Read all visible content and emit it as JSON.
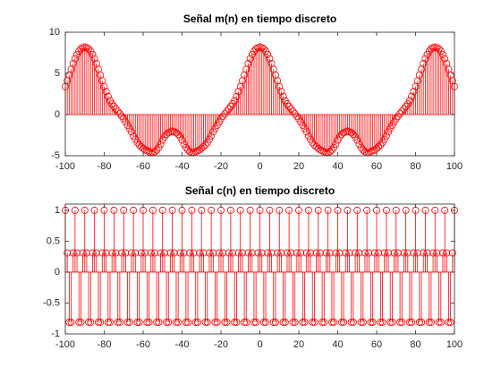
{
  "chart_data": [
    {
      "type": "stem",
      "title": "Señal m(n) en tiempo discreto",
      "color": "#ff0000",
      "x": [
        -100,
        -99,
        -98,
        -97,
        -96,
        -95,
        -94,
        -93,
        -92,
        -91,
        -90,
        -89,
        -88,
        -87,
        -86,
        -85,
        -84,
        -83,
        -82,
        -81,
        -80,
        -79,
        -78,
        -77,
        -76,
        -75,
        -74,
        -73,
        -72,
        -71,
        -70,
        -69,
        -68,
        -67,
        -66,
        -65,
        -64,
        -63,
        -62,
        -61,
        -60,
        -59,
        -58,
        -57,
        -56,
        -55,
        -54,
        -53,
        -52,
        -51,
        -50,
        -49,
        -48,
        -47,
        -46,
        -45,
        -44,
        -43,
        -42,
        -41,
        -40,
        -39,
        -38,
        -37,
        -36,
        -35,
        -34,
        -33,
        -32,
        -31,
        -30,
        -29,
        -28,
        -27,
        -26,
        -25,
        -24,
        -23,
        -22,
        -21,
        -20,
        -19,
        -18,
        -17,
        -16,
        -15,
        -14,
        -13,
        -12,
        -11,
        -10,
        -9,
        -8,
        -7,
        -6,
        -5,
        -4,
        -3,
        -2,
        -1,
        0,
        1,
        2,
        3,
        4,
        5,
        6,
        7,
        8,
        9,
        10,
        11,
        12,
        13,
        14,
        15,
        16,
        17,
        18,
        19,
        20,
        21,
        22,
        23,
        24,
        25,
        26,
        27,
        28,
        29,
        30,
        31,
        32,
        33,
        34,
        35,
        36,
        37,
        38,
        39,
        40,
        41,
        42,
        43,
        44,
        45,
        46,
        47,
        48,
        49,
        50,
        51,
        52,
        53,
        54,
        55,
        56,
        57,
        58,
        59,
        60,
        61,
        62,
        63,
        64,
        65,
        66,
        67,
        68,
        69,
        70,
        71,
        72,
        73,
        74,
        75,
        76,
        77,
        78,
        79,
        80,
        81,
        82,
        83,
        84,
        85,
        86,
        87,
        88,
        89,
        90,
        91,
        92,
        93,
        94,
        95,
        96,
        97,
        98,
        99,
        100
      ],
      "values": [
        3.4,
        4.1,
        4.8,
        5.5,
        6.2,
        6.8,
        7.3,
        7.7,
        8,
        8.1,
        8.2,
        8.1,
        8,
        7.7,
        7.3,
        6.8,
        6.2,
        5.5,
        4.8,
        4.1,
        3.4,
        2.8,
        2.2,
        1.7,
        1.3,
        1,
        0.7,
        0.4,
        0.1,
        -0.2,
        -0.5,
        -0.9,
        -1.3,
        -1.7,
        -2.1,
        -2.6,
        -3,
        -3.4,
        -3.7,
        -3.9,
        -4.1,
        -4.3,
        -4.4,
        -4.5,
        -4.6,
        -4.6,
        -4.5,
        -4.3,
        -4,
        -3.6,
        -3.1,
        -2.7,
        -2.4,
        -2.2,
        -2.1,
        -2,
        -2.1,
        -2.2,
        -2.4,
        -2.7,
        -3.1,
        -3.6,
        -4,
        -4.3,
        -4.5,
        -4.6,
        -4.6,
        -4.5,
        -4.4,
        -4.3,
        -4.1,
        -3.9,
        -3.7,
        -3.4,
        -3,
        -2.6,
        -2.1,
        -1.7,
        -1.3,
        -0.9,
        -0.5,
        -0.2,
        0.1,
        0.4,
        0.7,
        1,
        1.3,
        1.7,
        2.2,
        2.8,
        3.4,
        4.1,
        4.8,
        5.5,
        6.2,
        6.8,
        7.3,
        7.7,
        8,
        8.1,
        8.2,
        8.1,
        8,
        7.7,
        7.3,
        6.8,
        6.2,
        5.5,
        4.8,
        4.1,
        3.4,
        2.8,
        2.2,
        1.7,
        1.3,
        1,
        0.7,
        0.4,
        0.1,
        -0.2,
        -0.5,
        -0.9,
        -1.3,
        -1.7,
        -2.1,
        -2.6,
        -3,
        -3.4,
        -3.7,
        -3.9,
        -4.1,
        -4.3,
        -4.4,
        -4.5,
        -4.6,
        -4.6,
        -4.5,
        -4.3,
        -4,
        -3.6,
        -3.1,
        -2.7,
        -2.4,
        -2.2,
        -2.1,
        -2,
        -2.1,
        -2.2,
        -2.4,
        -2.7,
        -3.1,
        -3.6,
        -4,
        -4.3,
        -4.5,
        -4.6,
        -4.6,
        -4.5,
        -4.4,
        -4.3,
        -4.1,
        -3.9,
        -3.7,
        -3.4,
        -3,
        -2.6,
        -2.1,
        -1.7,
        -1.3,
        -0.9,
        -0.5,
        -0.2,
        0.1,
        0.4,
        0.7,
        1,
        1.3,
        1.7,
        2.2,
        2.8,
        3.4,
        4.1,
        4.8,
        5.5,
        6.2,
        6.8,
        7.3,
        7.7,
        8,
        8.1,
        8.2,
        8.1,
        8,
        7.7,
        7.3,
        6.8,
        6.2,
        5.5,
        4.8,
        4.1,
        3.4
      ],
      "xlim": [
        -100,
        100
      ],
      "xticks": [
        -100,
        -80,
        -60,
        -40,
        -20,
        0,
        20,
        40,
        60,
        80,
        100
      ],
      "ylim": [
        -5,
        10
      ],
      "yticks": [
        -5,
        0,
        5,
        10
      ]
    },
    {
      "type": "stem",
      "title": "Señal c(n) en tiempo discreto",
      "color": "#ff0000",
      "x": [
        -100,
        -99,
        -98,
        -97,
        -96,
        -95,
        -94,
        -93,
        -92,
        -91,
        -90,
        -89,
        -88,
        -87,
        -86,
        -85,
        -84,
        -83,
        -82,
        -81,
        -80,
        -79,
        -78,
        -77,
        -76,
        -75,
        -74,
        -73,
        -72,
        -71,
        -70,
        -69,
        -68,
        -67,
        -66,
        -65,
        -64,
        -63,
        -62,
        -61,
        -60,
        -59,
        -58,
        -57,
        -56,
        -55,
        -54,
        -53,
        -52,
        -51,
        -50,
        -49,
        -48,
        -47,
        -46,
        -45,
        -44,
        -43,
        -42,
        -41,
        -40,
        -39,
        -38,
        -37,
        -36,
        -35,
        -34,
        -33,
        -32,
        -31,
        -30,
        -29,
        -28,
        -27,
        -26,
        -25,
        -24,
        -23,
        -22,
        -21,
        -20,
        -19,
        -18,
        -17,
        -16,
        -15,
        -14,
        -13,
        -12,
        -11,
        -10,
        -9,
        -8,
        -7,
        -6,
        -5,
        -4,
        -3,
        -2,
        -1,
        0,
        1,
        2,
        3,
        4,
        5,
        6,
        7,
        8,
        9,
        10,
        11,
        12,
        13,
        14,
        15,
        16,
        17,
        18,
        19,
        20,
        21,
        22,
        23,
        24,
        25,
        26,
        27,
        28,
        29,
        30,
        31,
        32,
        33,
        34,
        35,
        36,
        37,
        38,
        39,
        40,
        41,
        42,
        43,
        44,
        45,
        46,
        47,
        48,
        49,
        50,
        51,
        52,
        53,
        54,
        55,
        56,
        57,
        58,
        59,
        60,
        61,
        62,
        63,
        64,
        65,
        66,
        67,
        68,
        69,
        70,
        71,
        72,
        73,
        74,
        75,
        76,
        77,
        78,
        79,
        80,
        81,
        82,
        83,
        84,
        85,
        86,
        87,
        88,
        89,
        90,
        91,
        92,
        93,
        94,
        95,
        96,
        97,
        98,
        99,
        100
      ],
      "values": [
        1,
        0.31,
        -0.81,
        -0.81,
        0.31,
        1,
        0.31,
        -0.81,
        -0.81,
        0.31,
        1,
        0.31,
        -0.81,
        -0.81,
        0.31,
        1,
        0.31,
        -0.81,
        -0.81,
        0.31,
        1,
        0.31,
        -0.81,
        -0.81,
        0.31,
        1,
        0.31,
        -0.81,
        -0.81,
        0.31,
        1,
        0.31,
        -0.81,
        -0.81,
        0.31,
        1,
        0.31,
        -0.81,
        -0.81,
        0.31,
        1,
        0.31,
        -0.81,
        -0.81,
        0.31,
        1,
        0.31,
        -0.81,
        -0.81,
        0.31,
        1,
        0.31,
        -0.81,
        -0.81,
        0.31,
        1,
        0.31,
        -0.81,
        -0.81,
        0.31,
        1,
        0.31,
        -0.81,
        -0.81,
        0.31,
        1,
        0.31,
        -0.81,
        -0.81,
        0.31,
        1,
        0.31,
        -0.81,
        -0.81,
        0.31,
        1,
        0.31,
        -0.81,
        -0.81,
        0.31,
        1,
        0.31,
        -0.81,
        -0.81,
        0.31,
        1,
        0.31,
        -0.81,
        -0.81,
        0.31,
        1,
        0.31,
        -0.81,
        -0.81,
        0.31,
        1,
        0.31,
        -0.81,
        -0.81,
        0.31,
        1,
        0.31,
        -0.81,
        -0.81,
        0.31,
        1,
        0.31,
        -0.81,
        -0.81,
        0.31,
        1,
        0.31,
        -0.81,
        -0.81,
        0.31,
        1,
        0.31,
        -0.81,
        -0.81,
        0.31,
        1,
        0.31,
        -0.81,
        -0.81,
        0.31,
        1,
        0.31,
        -0.81,
        -0.81,
        0.31,
        1,
        0.31,
        -0.81,
        -0.81,
        0.31,
        1,
        0.31,
        -0.81,
        -0.81,
        0.31,
        1,
        0.31,
        -0.81,
        -0.81,
        0.31,
        1,
        0.31,
        -0.81,
        -0.81,
        0.31,
        1,
        0.31,
        -0.81,
        -0.81,
        0.31,
        1,
        0.31,
        -0.81,
        -0.81,
        0.31,
        1,
        0.31,
        -0.81,
        -0.81,
        0.31,
        1,
        0.31,
        -0.81,
        -0.81,
        0.31,
        1,
        0.31,
        -0.81,
        -0.81,
        0.31,
        1,
        0.31,
        -0.81,
        -0.81,
        0.31,
        1,
        0.31,
        -0.81,
        -0.81,
        0.31,
        1,
        0.31,
        -0.81,
        -0.81,
        0.31,
        1,
        0.31,
        -0.81,
        -0.81,
        0.31,
        1,
        0.31,
        -0.81,
        -0.81,
        0.31,
        1
      ],
      "xlim": [
        -100,
        100
      ],
      "xticks": [
        -100,
        -80,
        -60,
        -40,
        -20,
        0,
        20,
        40,
        60,
        80,
        100
      ],
      "ylim": [
        -1,
        1.1
      ],
      "yticks": [
        -1,
        -0.5,
        0,
        0.5,
        1
      ]
    }
  ]
}
